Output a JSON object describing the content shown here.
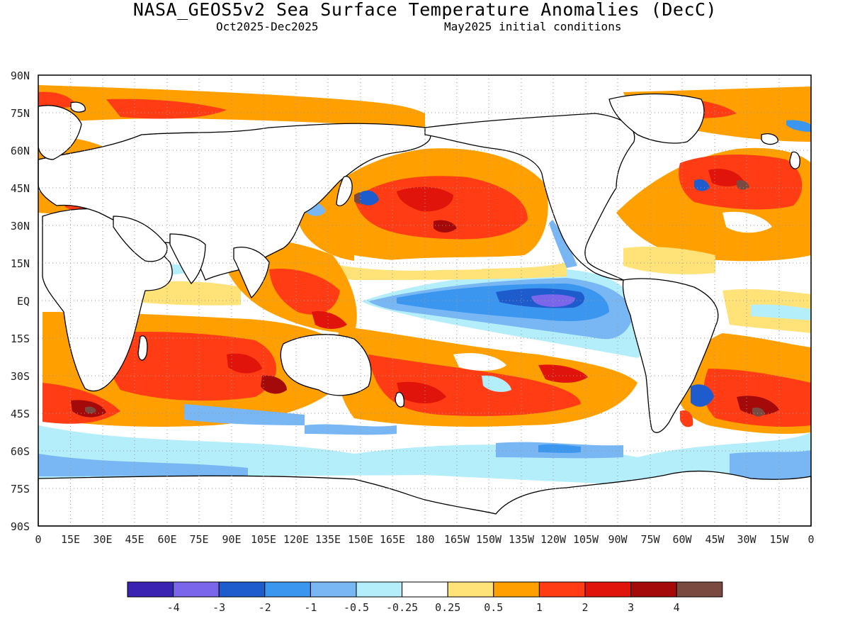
{
  "figure": {
    "title": "NASA_GEOS5v2 Sea Surface Temperature Anomalies (DecC)",
    "period": "Oct2025-Dec2025",
    "init": "May2025 initial conditions"
  },
  "axes": {
    "lat_labels": [
      "90N",
      "75N",
      "60N",
      "45N",
      "30N",
      "15N",
      "EQ",
      "15S",
      "30S",
      "45S",
      "60S",
      "75S",
      "90S"
    ],
    "lon_labels": [
      "0",
      "15E",
      "30E",
      "45E",
      "60E",
      "75E",
      "90E",
      "105E",
      "120E",
      "135E",
      "150E",
      "165E",
      "180",
      "165W",
      "150W",
      "135W",
      "120W",
      "105W",
      "90W",
      "75W",
      "60W",
      "45W",
      "30W",
      "15W",
      "0"
    ]
  },
  "colorbar": {
    "colors": [
      "#3a22b2",
      "#7a66ea",
      "#1e5ccd",
      "#3a96ef",
      "#78b6f4",
      "#b4eefa",
      "#ffffff",
      "#ffe278",
      "#ffa000",
      "#ff3c14",
      "#e0140a",
      "#a40a0a",
      "#7a4a40"
    ],
    "labels": [
      "-4",
      "-3",
      "-2",
      "-1",
      "-0.5",
      "-0.25",
      "0.25",
      "0.5",
      "1",
      "2",
      "3",
      "4"
    ]
  },
  "grid": "dotted"
}
